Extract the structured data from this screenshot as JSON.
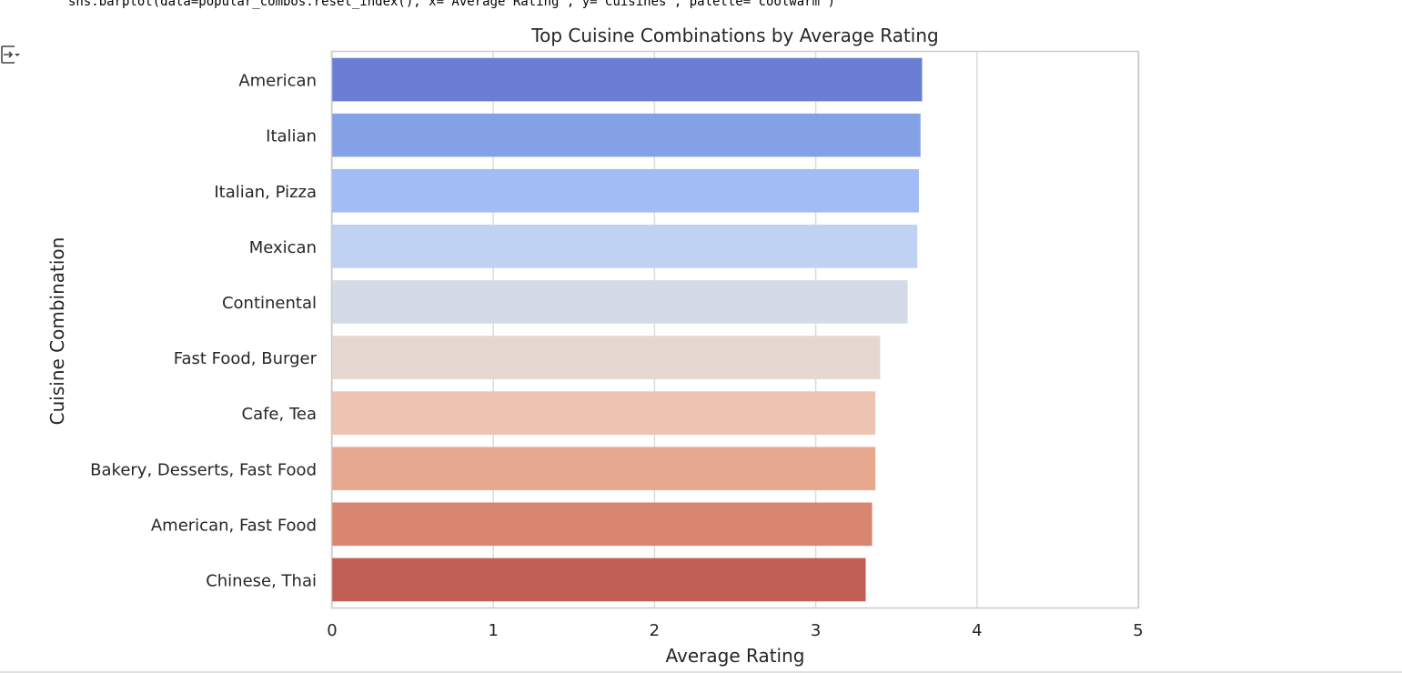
{
  "cell": {
    "code": "sns.barplot(data=popular_combos.reset_index(), x='Average Rating', y='Cuisines', palette='coolwarm')",
    "output_icon": "output-collapse-icon"
  },
  "chart_data": {
    "type": "bar",
    "orientation": "horizontal",
    "title": "Top Cuisine Combinations by Average Rating",
    "xlabel": "Average Rating",
    "ylabel": "Cuisine Combination",
    "xlim": [
      0,
      5
    ],
    "xticks": [
      "0",
      "1",
      "2",
      "3",
      "4",
      "5"
    ],
    "grid": "vertical",
    "categories": [
      "American",
      "Italian",
      "Italian, Pizza",
      "Mexican",
      "Continental",
      "Fast Food, Burger",
      "Cafe, Tea",
      "Bakery, Desserts, Fast Food",
      "American, Fast Food",
      "Chinese, Thai"
    ],
    "values": [
      3.66,
      3.65,
      3.64,
      3.63,
      3.57,
      3.4,
      3.37,
      3.37,
      3.35,
      3.31
    ],
    "colors": [
      "#6a7ed4",
      "#85a1e6",
      "#a2bcf5",
      "#bfd2f3",
      "#d4dbe7",
      "#e5d8d1",
      "#ecc4b1",
      "#e6a98f",
      "#d98670",
      "#c15e55"
    ]
  }
}
